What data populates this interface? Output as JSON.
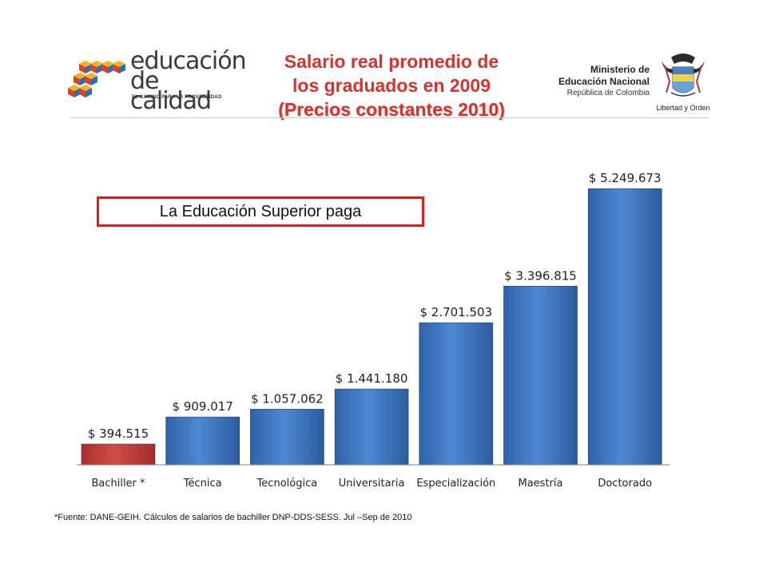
{
  "header": {
    "logo_line1": "educación",
    "logo_line2": "de calidad",
    "logo_tagline": "EL CAMINO PARA LA PROSPERIDAD",
    "title_line1": "Salario real promedio de",
    "title_line2": "los  graduados en 2009",
    "title_line3": "(Precios constantes 2010)",
    "ministry_line1": "Ministerio de",
    "ministry_line2": "Educación Nacional",
    "ministry_line3": "República de Colombia",
    "seal_motto": "Libertad y Orden"
  },
  "callout": {
    "text": "La Educación Superior paga"
  },
  "footnote": "*Fuente: DANE-GEIH. Cálculos de salarios de bachiller DNP-DDS-SESS. Jul –Sep de 2010",
  "colors": {
    "title": "#d8322e",
    "bar_blue": "#3f78c6",
    "bar_red": "#c8403a",
    "callout_border": "#e21b1b"
  },
  "chart_data": {
    "type": "bar",
    "title": "",
    "xlabel": "",
    "ylabel": "",
    "ylim": [
      0,
      5800000
    ],
    "grid": false,
    "legend": "none",
    "categories": [
      "Bachiller *",
      "Técnica",
      "Tecnológica",
      "Universitaria",
      "Especialización",
      "Maestría",
      "Doctorado"
    ],
    "values": [
      394515,
      909017,
      1057062,
      1441180,
      2701503,
      3396815,
      5249673
    ],
    "data_labels": [
      "$ 394.515",
      "$ 909.017",
      "$ 1.057.062",
      "$ 1.441.180",
      "$ 2.701.503",
      "$ 3.396.815",
      "$ 5.249.673"
    ],
    "bar_colors": [
      "#c8403a",
      "#3f78c6",
      "#3f78c6",
      "#3f78c6",
      "#3f78c6",
      "#3f78c6",
      "#3f78c6"
    ]
  }
}
